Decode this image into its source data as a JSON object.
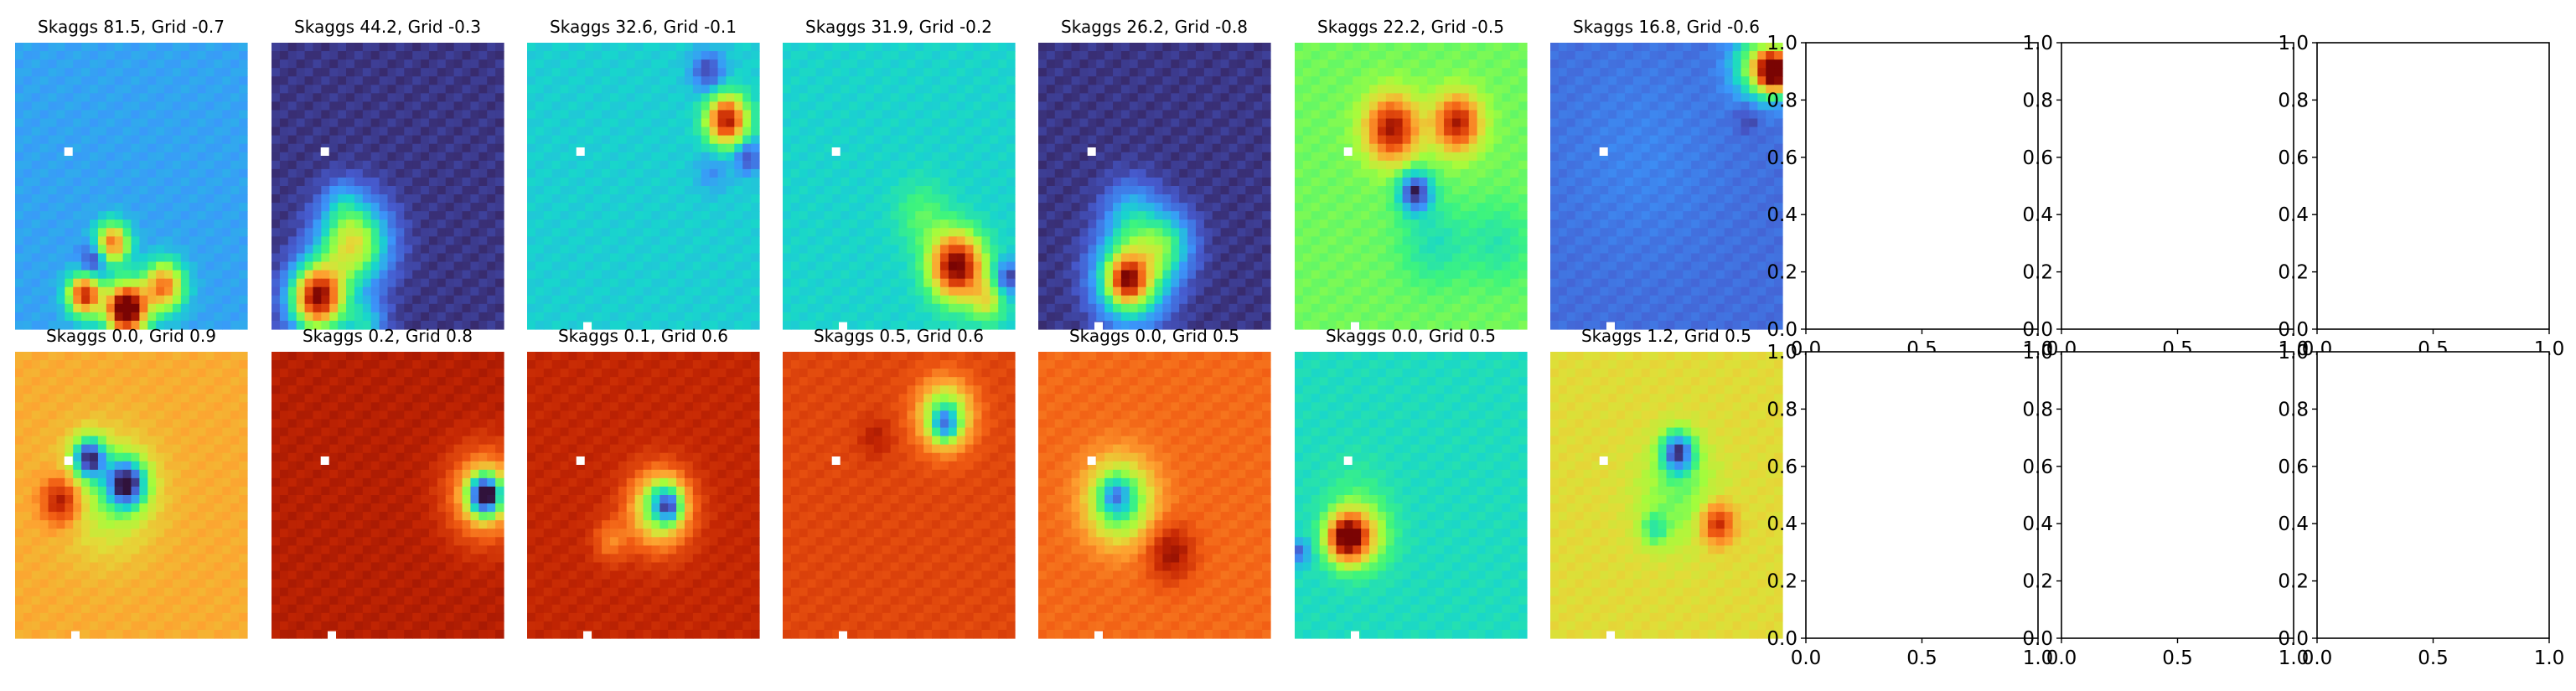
{
  "chart_data": {
    "type": "heatmap",
    "layout": {
      "rows": 2,
      "cols": 10
    },
    "colormap": "turbo",
    "marker_color": "#ffffff",
    "panels": [
      {
        "row": 0,
        "col": 0,
        "title": "Skaggs 81.5, Grid -0.7",
        "base": 0.22,
        "blobs": [
          [
            0.3,
            0.88,
            0.05,
            0.68
          ],
          [
            0.48,
            0.93,
            0.06,
            0.95
          ],
          [
            0.42,
            0.7,
            0.05,
            0.55
          ],
          [
            0.64,
            0.85,
            0.06,
            0.55
          ],
          [
            0.34,
            0.76,
            0.04,
            -0.22
          ]
        ],
        "markers": [
          [
            0.23,
            0.38
          ]
        ]
      },
      {
        "row": 0,
        "col": 1,
        "title": "Skaggs 44.2, Grid -0.3",
        "base": 0.05,
        "blobs": [
          [
            0.2,
            0.89,
            0.08,
            0.92
          ],
          [
            0.35,
            0.7,
            0.1,
            0.55
          ],
          [
            0.3,
            0.55,
            0.05,
            0.1
          ],
          [
            0.4,
            0.98,
            0.06,
            0.25
          ]
        ],
        "markers": [
          [
            0.23,
            0.38
          ]
        ]
      },
      {
        "row": 0,
        "col": 2,
        "title": "Skaggs 32.6, Grid -0.1",
        "base": 0.29,
        "blobs": [
          [
            0.86,
            0.27,
            0.06,
            0.65
          ],
          [
            0.78,
            0.1,
            0.05,
            -0.22
          ],
          [
            0.95,
            0.4,
            0.04,
            -0.22
          ],
          [
            0.8,
            0.45,
            0.05,
            -0.1
          ]
        ],
        "markers": [
          [
            0.23,
            0.38
          ],
          [
            0.26,
            0.99
          ]
        ]
      },
      {
        "row": 0,
        "col": 3,
        "title": "Skaggs 31.9, Grid -0.2",
        "base": 0.3,
        "blobs": [
          [
            0.75,
            0.78,
            0.08,
            0.72
          ],
          [
            0.88,
            0.9,
            0.05,
            0.25
          ],
          [
            0.97,
            0.82,
            0.04,
            -0.25
          ],
          [
            0.6,
            0.6,
            0.08,
            0.12
          ]
        ],
        "markers": [
          [
            0.23,
            0.38
          ],
          [
            0.26,
            0.99
          ]
        ]
      },
      {
        "row": 0,
        "col": 4,
        "title": "Skaggs 26.2, Grid -0.8",
        "base": 0.05,
        "blobs": [
          [
            0.4,
            0.82,
            0.1,
            0.62
          ],
          [
            0.38,
            0.83,
            0.05,
            0.35
          ],
          [
            0.55,
            0.7,
            0.08,
            0.3
          ],
          [
            0.4,
            0.6,
            0.08,
            0.2
          ]
        ],
        "markers": [
          [
            0.23,
            0.38
          ],
          [
            0.26,
            0.99
          ]
        ]
      },
      {
        "row": 0,
        "col": 5,
        "title": "Skaggs 22.2, Grid -0.5",
        "base": 0.45,
        "blobs": [
          [
            0.42,
            0.3,
            0.08,
            0.5
          ],
          [
            0.7,
            0.28,
            0.07,
            0.48
          ],
          [
            0.52,
            0.52,
            0.05,
            -0.42
          ],
          [
            0.6,
            0.7,
            0.1,
            -0.12
          ],
          [
            0.88,
            0.7,
            0.1,
            -0.1
          ]
        ],
        "markers": [
          [
            0.23,
            0.38
          ],
          [
            0.26,
            0.99
          ]
        ]
      },
      {
        "row": 0,
        "col": 6,
        "title": "Skaggs 16.8, Grid -0.6",
        "base": 0.13,
        "blobs": [
          [
            0.97,
            0.1,
            0.05,
            0.85
          ],
          [
            0.9,
            0.08,
            0.08,
            0.4
          ],
          [
            0.85,
            0.26,
            0.04,
            -0.08
          ],
          [
            0.4,
            0.4,
            0.25,
            0.04
          ]
        ],
        "markers": [
          [
            0.23,
            0.38
          ],
          [
            0.26,
            0.99
          ]
        ]
      },
      {
        "row": 0,
        "col": 7,
        "title": "",
        "empty": true
      },
      {
        "row": 0,
        "col": 8,
        "title": "",
        "empty": true
      },
      {
        "row": 0,
        "col": 9,
        "title": "",
        "empty": true
      },
      {
        "row": 1,
        "col": 0,
        "title": "Skaggs 0.0, Grid 0.9",
        "base": 0.68,
        "blobs": [
          [
            0.2,
            0.52,
            0.06,
            0.3
          ],
          [
            0.32,
            0.37,
            0.05,
            -0.58
          ],
          [
            0.48,
            0.46,
            0.06,
            -0.6
          ],
          [
            0.4,
            0.5,
            0.14,
            -0.18
          ]
        ],
        "markers": [
          [
            0.23,
            0.38
          ],
          [
            0.26,
            0.99
          ]
        ]
      },
      {
        "row": 1,
        "col": 1,
        "title": "Skaggs 0.2, Grid 0.8",
        "base": 0.92,
        "blobs": [
          [
            0.92,
            0.5,
            0.05,
            -0.75
          ],
          [
            0.92,
            0.5,
            0.11,
            -0.3
          ]
        ],
        "markers": [
          [
            0.23,
            0.38
          ],
          [
            0.26,
            0.99
          ]
        ]
      },
      {
        "row": 1,
        "col": 2,
        "title": "Skaggs 0.1, Grid 0.6",
        "base": 0.9,
        "blobs": [
          [
            0.57,
            0.55,
            0.09,
            -0.45
          ],
          [
            0.6,
            0.52,
            0.05,
            -0.3
          ],
          [
            0.62,
            0.55,
            0.03,
            -0.2
          ],
          [
            0.36,
            0.66,
            0.05,
            -0.15
          ]
        ],
        "markers": [
          [
            0.23,
            0.38
          ],
          [
            0.26,
            0.99
          ]
        ]
      },
      {
        "row": 1,
        "col": 3,
        "title": "Skaggs 0.5, Grid 0.6",
        "base": 0.84,
        "blobs": [
          [
            0.7,
            0.22,
            0.08,
            -0.45
          ],
          [
            0.7,
            0.26,
            0.04,
            -0.3
          ],
          [
            0.4,
            0.3,
            0.05,
            0.08
          ]
        ],
        "markers": [
          [
            0.23,
            0.38
          ],
          [
            0.26,
            0.99
          ]
        ]
      },
      {
        "row": 1,
        "col": 4,
        "title": "Skaggs 0.0, Grid 0.5",
        "base": 0.78,
        "blobs": [
          [
            0.35,
            0.52,
            0.1,
            -0.45
          ],
          [
            0.33,
            0.5,
            0.04,
            -0.2
          ],
          [
            0.57,
            0.7,
            0.07,
            0.18
          ]
        ],
        "markers": [
          [
            0.23,
            0.38
          ],
          [
            0.26,
            0.99
          ]
        ]
      },
      {
        "row": 1,
        "col": 5,
        "title": "Skaggs 0.0, Grid 0.5",
        "base": 0.32,
        "blobs": [
          [
            0.22,
            0.65,
            0.06,
            0.62
          ],
          [
            0.3,
            0.64,
            0.08,
            0.25
          ],
          [
            0.02,
            0.7,
            0.03,
            -0.2
          ],
          [
            0.25,
            0.5,
            0.1,
            0.05
          ]
        ],
        "markers": [
          [
            0.23,
            0.38
          ],
          [
            0.26,
            0.99
          ]
        ]
      },
      {
        "row": 1,
        "col": 6,
        "title": "Skaggs 1.2, Grid 0.5",
        "base": 0.6,
        "blobs": [
          [
            0.55,
            0.35,
            0.05,
            -0.5
          ],
          [
            0.72,
            0.6,
            0.05,
            0.32
          ],
          [
            0.45,
            0.62,
            0.04,
            -0.2
          ],
          [
            0.55,
            0.5,
            0.12,
            -0.15
          ]
        ],
        "markers": [
          [
            0.23,
            0.38
          ],
          [
            0.26,
            0.99
          ]
        ]
      },
      {
        "row": 1,
        "col": 7,
        "title": "",
        "empty": true
      },
      {
        "row": 1,
        "col": 8,
        "title": "",
        "empty": true
      },
      {
        "row": 1,
        "col": 9,
        "title": "",
        "empty": true
      }
    ],
    "empty_axes": {
      "xlim": [
        0,
        1
      ],
      "ylim": [
        0,
        1
      ],
      "xticks": [
        "0.0",
        "0.5",
        "1.0"
      ],
      "yticks": [
        "0.0",
        "0.2",
        "0.4",
        "0.6",
        "0.8",
        "1.0"
      ]
    }
  }
}
